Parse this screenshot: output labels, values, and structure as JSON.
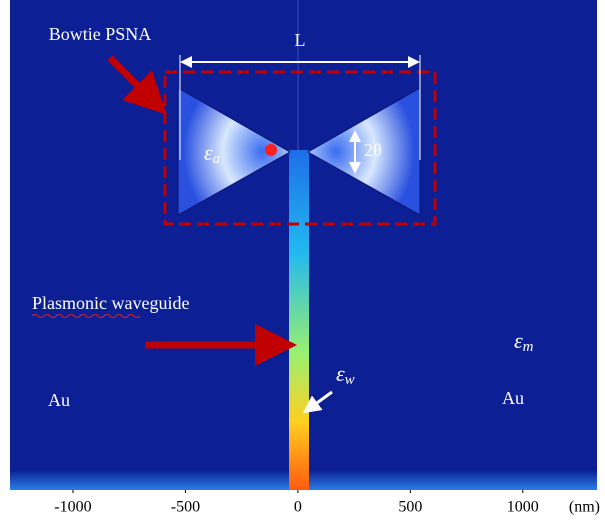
{
  "chart_data": {
    "type": "field-map",
    "x_label": "(nm)",
    "xlim": [
      -1280,
      1330
    ],
    "xticks": [
      -1000,
      -500,
      0,
      500,
      1000
    ],
    "background_color": "#0c1f94",
    "annotations": {
      "bowtie": "Bowtie PSNA",
      "length": "L",
      "angle": "2θ",
      "eps_a": {
        "symbol": "ε",
        "sub": "a"
      },
      "eps_m": {
        "symbol": "ε",
        "sub": "m"
      },
      "eps_w": {
        "symbol": "ε",
        "sub": "w"
      },
      "au_left": "Au",
      "au_right": "Au",
      "waveguide_word1": "Plasmonic",
      "waveguide_word2": "waveguide"
    }
  }
}
